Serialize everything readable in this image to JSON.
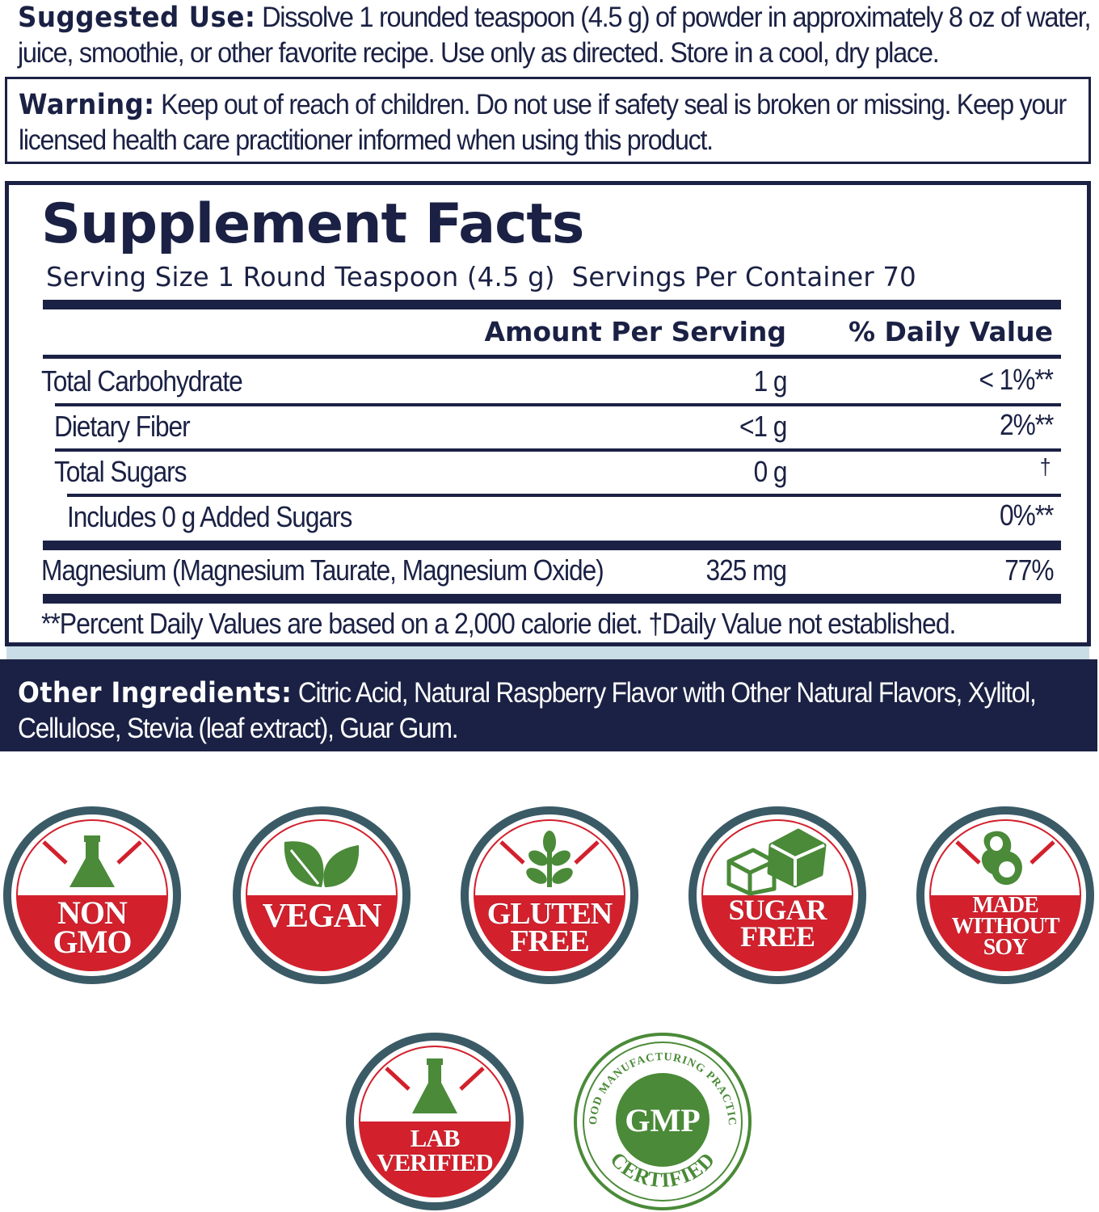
{
  "suggested_use": {
    "label": "Suggested Use:",
    "text": " Dissolve 1 rounded teaspoon (4.5 g) of powder in approximately 8 oz of water, juice, smoothie, or other favorite recipe. Use only as directed. Store in a cool, dry place."
  },
  "warning": {
    "label": "Warning:",
    "text": " Keep out of reach of children. Do not use if safety seal is broken or missing. Keep your licensed health care practitioner informed when using this product."
  },
  "facts": {
    "title": "Supplement Facts",
    "serving_size": "Serving Size 1 Round Teaspoon (4.5 g)",
    "servings_per_container": "Servings Per Container 70",
    "col_amount": "Amount Per Serving",
    "col_dv": "% Daily Value",
    "rows": [
      {
        "name": "Total Carbohydrate",
        "amount": "1 g",
        "dv": "< 1%**"
      },
      {
        "name": "Dietary Fiber",
        "amount": "<1 g",
        "dv": "2%**"
      },
      {
        "name": "Total Sugars",
        "amount": "0 g",
        "dv": "†"
      },
      {
        "name": "Includes 0 g Added Sugars",
        "amount": "",
        "dv": "0%**"
      },
      {
        "name": "Magnesium (Magnesium Taurate, Magnesium Oxide)",
        "amount": "325 mg",
        "dv": "77%"
      }
    ],
    "footnote": "**Percent Daily Values are based on a 2,000 calorie diet. †Daily Value not established."
  },
  "other_ingredients": {
    "label": "Other Ingredients:",
    "text": " Citric Acid, Natural Raspberry Flavor with Other Natural Flavors, Xylitol, Cellulose, Stevia (leaf extract), Guar Gum."
  },
  "badges": [
    {
      "line1": "NON",
      "line2": "GMO",
      "icon": "flask-icon"
    },
    {
      "line1": "VEGAN",
      "line2": "",
      "icon": "leaf-icon"
    },
    {
      "line1": "GLUTEN",
      "line2": "FREE",
      "icon": "wheat-icon"
    },
    {
      "line1": "SUGAR",
      "line2": "FREE",
      "icon": "sugar-cube-icon"
    },
    {
      "line1": "MADE",
      "line2": "WITHOUT",
      "line3": "SOY",
      "icon": "soybean-icon"
    },
    {
      "line1": "LAB",
      "line2": "VERIFIED",
      "icon": "flask-icon"
    }
  ],
  "gmp": {
    "center": "GMP",
    "ring_top": "GOOD MANUFACTURING PRACTICE",
    "ring_bottom": "CERTIFIED"
  },
  "colors": {
    "navy": "#1b2144",
    "badge_red": "#d2212d",
    "badge_ring": "#3a5a66",
    "icon_green": "#4a8a38",
    "light_band": "#c9dde6"
  }
}
